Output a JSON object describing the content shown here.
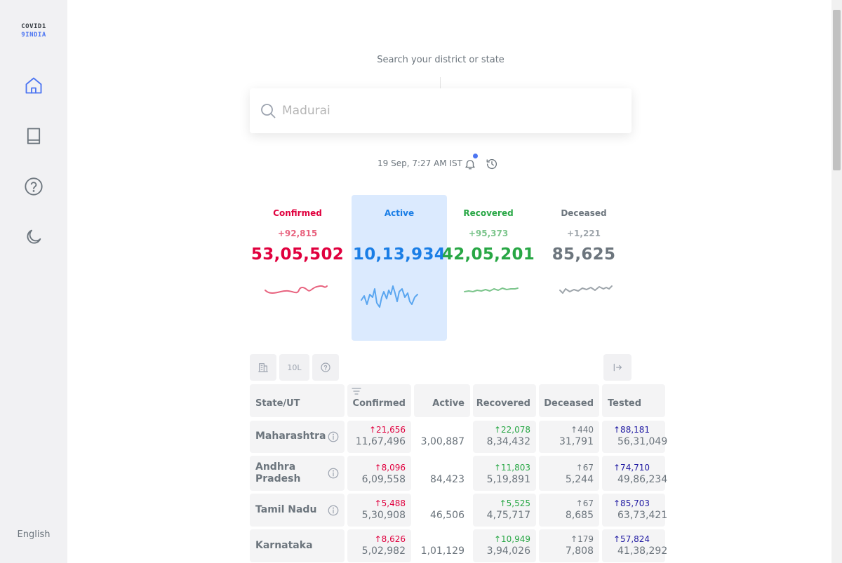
{
  "app": {
    "logo_line1": "COVID1",
    "logo_line2": "9INDIA"
  },
  "sidebar": {
    "language": "English",
    "icons": [
      "home-icon",
      "book-icon",
      "help-icon",
      "moon-icon"
    ]
  },
  "search": {
    "label": "Search your district or state",
    "placeholder": "Madurai"
  },
  "timestamp": "19 Sep, 7:27 AM IST",
  "levels": [
    {
      "title": "Confirmed",
      "delta": "+92,815",
      "total": "53,05,502",
      "color": "#e0003e",
      "delta_color": "#e8637f"
    },
    {
      "title": "Active",
      "delta": "",
      "total": "10,13,934",
      "color": "#1a7ee6",
      "delta_color": "#1a7ee6"
    },
    {
      "title": "Recovered",
      "delta": "+95,373",
      "total": "42,05,201",
      "color": "#28a745",
      "delta_color": "#7cc58c"
    },
    {
      "title": "Deceased",
      "delta": "+1,221",
      "total": "85,625",
      "color": "#6c757d",
      "delta_color": "#9ea5ab"
    }
  ],
  "toolbar": {
    "abs_label": "10L"
  },
  "table": {
    "headers": [
      "State/UT",
      "Confirmed",
      "Active",
      "Recovered",
      "Deceased",
      "Tested"
    ],
    "rows": [
      {
        "state": "Maharashtra",
        "conf_delta": "↑21,656",
        "conf": "11,67,496",
        "active": "3,00,887",
        "rec_delta": "↑22,078",
        "rec": "8,34,432",
        "dec_delta": "↑440",
        "dec": "31,791",
        "test_delta": "↑88,181",
        "test": "56,31,049"
      },
      {
        "state": "Andhra Pradesh",
        "conf_delta": "↑8,096",
        "conf": "6,09,558",
        "active": "84,423",
        "rec_delta": "↑11,803",
        "rec": "5,19,891",
        "dec_delta": "↑67",
        "dec": "5,244",
        "test_delta": "↑74,710",
        "test": "49,86,234"
      },
      {
        "state": "Tamil Nadu",
        "conf_delta": "↑5,488",
        "conf": "5,30,908",
        "active": "46,506",
        "rec_delta": "↑5,525",
        "rec": "4,75,717",
        "dec_delta": "↑67",
        "dec": "8,685",
        "test_delta": "↑85,703",
        "test": "63,73,421"
      },
      {
        "state": "Karnataka",
        "conf_delta": "↑8,626",
        "conf": "5,02,982",
        "active": "1,01,129",
        "rec_delta": "↑10,949",
        "rec": "3,94,026",
        "dec_delta": "↑179",
        "dec": "7,808",
        "test_delta": "↑57,824",
        "test": "41,38,292"
      }
    ]
  }
}
